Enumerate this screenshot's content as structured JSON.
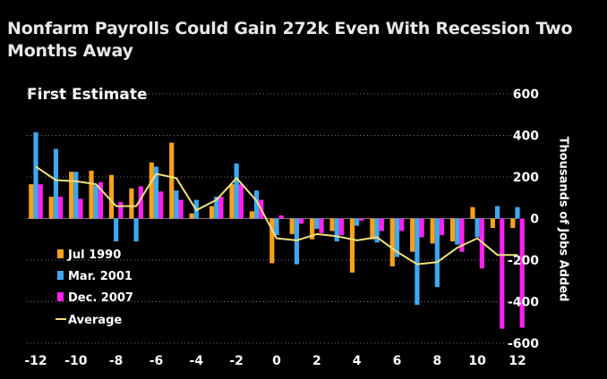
{
  "chart_data": {
    "type": "bar",
    "title": "Nonfarm Payrolls Could Gain 272k Even With Recession Two Months Away",
    "subtitle": "First Estimate",
    "ylabel": "Thousands of Jobs Added",
    "xlabel": "",
    "ylim": [
      -600,
      600
    ],
    "xlim": [
      -12,
      12
    ],
    "y_ticks": [
      600,
      400,
      200,
      0,
      -200,
      -400,
      -600
    ],
    "x_ticks": [
      -12,
      -10,
      -8,
      -6,
      -4,
      -2,
      0,
      2,
      4,
      6,
      8,
      10,
      12
    ],
    "grid": "dotted horizontal",
    "legend_position": "bottom-left",
    "colors": {
      "Jul 1990": "#f7a21b",
      "Mar. 2001": "#3ea8f0",
      "Dec. 2007": "#ff21f0",
      "Average": "#f0e080",
      "grid": "#777777",
      "background": "#000000"
    },
    "x": [
      -12,
      -11,
      -10,
      -9,
      -8,
      -7,
      -6,
      -5,
      -4,
      -3,
      -2,
      -1,
      0,
      1,
      2,
      3,
      4,
      5,
      6,
      7,
      8,
      9,
      10,
      11,
      12
    ],
    "series": [
      {
        "name": "Jul 1990",
        "type": "bar",
        "values": [
          165,
          105,
          225,
          230,
          210,
          145,
          270,
          365,
          25,
          60,
          165,
          35,
          -215,
          -75,
          -100,
          -60,
          -260,
          -100,
          -230,
          -160,
          -120,
          -110,
          55,
          -45,
          -45
        ]
      },
      {
        "name": "Mar. 2001",
        "type": "bar",
        "values": [
          415,
          335,
          225,
          160,
          -110,
          -110,
          250,
          135,
          90,
          105,
          265,
          135,
          -80,
          -220,
          -50,
          -110,
          -35,
          -115,
          -185,
          -415,
          -330,
          -125,
          -90,
          60,
          55
        ]
      },
      {
        "name": "Dec. 2007",
        "type": "bar",
        "values": [
          165,
          105,
          95,
          175,
          80,
          155,
          130,
          90,
          0,
          105,
          165,
          90,
          15,
          -25,
          -70,
          -80,
          -10,
          -60,
          -60,
          -90,
          -80,
          -160,
          -240,
          -530,
          -525
        ]
      },
      {
        "name": "Average",
        "type": "line",
        "values": [
          250,
          185,
          180,
          165,
          60,
          60,
          215,
          195,
          40,
          90,
          195,
          85,
          -95,
          -105,
          -75,
          -85,
          -105,
          -90,
          -160,
          -220,
          -210,
          -140,
          -95,
          -175,
          -175
        ]
      }
    ]
  }
}
